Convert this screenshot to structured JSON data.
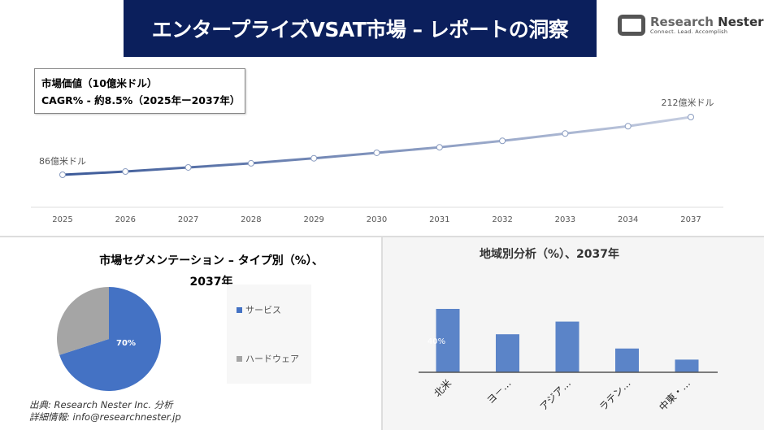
{
  "header": {
    "title": "エンタープライズVSAT市場 – レポートの洞察",
    "logo_name": "Research",
    "logo_name_bold": "Nester",
    "logo_tagline": "Connect. Lead. Accomplish"
  },
  "info": {
    "line1": "市場価値（10億米ドル）",
    "line2": "CAGR% - 約8.5%（2025年ー2037年）"
  },
  "chart_data": [
    {
      "type": "line",
      "categories": [
        "2025",
        "2026",
        "2027",
        "2028",
        "2029",
        "2030",
        "2031",
        "2032",
        "2033",
        "2034",
        "2037"
      ],
      "values": [
        86,
        93,
        102,
        111,
        122,
        134,
        146,
        160,
        176,
        192,
        212
      ],
      "data_labels": {
        "first": "86億米ドル",
        "last": "212億米ドル"
      },
      "colors": [
        "#3b5998",
        "#c5cde0"
      ]
    },
    {
      "type": "pie",
      "title": "市場セグメンテーション – タイプ別（%）、2037年",
      "title_line1": "市場セグメンテーション – タイプ別（%）、",
      "title_line2": "2037年",
      "slices": [
        {
          "label": "サービス",
          "value": 70,
          "color": "#4472c4",
          "data_label": "70%"
        },
        {
          "label": "ハードウェア",
          "value": 30,
          "color": "#a5a5a5"
        }
      ],
      "legend": "right"
    },
    {
      "type": "bar",
      "title": "地域別分析（%）、2037年",
      "categories": [
        "北米",
        "ヨ－…",
        "アジア…",
        "ラテン…",
        "中東・…"
      ],
      "values": [
        40,
        24,
        32,
        15,
        8
      ],
      "data_label": "40%",
      "color": "#5b84c8"
    }
  ],
  "footer": {
    "source": "出典: Research Nester Inc. 分析",
    "info": "詳細情報: info@researchnester.jp"
  }
}
